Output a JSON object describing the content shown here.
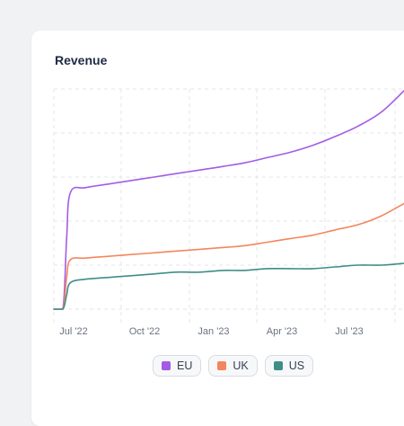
{
  "card": {
    "title": "Revenue"
  },
  "colors": {
    "EU": "#a35ce3",
    "UK": "#f4865f",
    "US": "#3f8d88",
    "grid": "#e3e5e9"
  },
  "chart_data": {
    "type": "line",
    "title": "Revenue",
    "xlabel": "",
    "ylabel": "",
    "x_ticks": [
      "Jul '22",
      "Oct '22",
      "Jan '23",
      "Apr '23",
      "Jul '23"
    ],
    "x": [
      "2022-06-20",
      "2022-07-02",
      "2022-07-07",
      "2022-07-12",
      "2022-08-01",
      "2022-09-01",
      "2022-10-01",
      "2022-11-01",
      "2022-12-01",
      "2023-01-01",
      "2023-02-01",
      "2023-03-01",
      "2023-04-01",
      "2023-05-01",
      "2023-06-01",
      "2023-07-01",
      "2023-08-01",
      "2023-09-01",
      "2023-10-01"
    ],
    "series": [
      {
        "name": "EU",
        "values": [
          0,
          0,
          40,
          66,
          69,
          71,
          73,
          75,
          77,
          79,
          81,
          83,
          86,
          89,
          93,
          98,
          104,
          112,
          124
        ]
      },
      {
        "name": "UK",
        "values": [
          0,
          0,
          18,
          28,
          29,
          30,
          31,
          32,
          33,
          34,
          35,
          36,
          38,
          40,
          42,
          45,
          48,
          53,
          60
        ]
      },
      {
        "name": "US",
        "values": [
          0,
          0,
          8,
          15,
          17,
          18,
          19,
          20,
          21,
          21,
          22,
          22,
          23,
          23,
          23,
          24,
          25,
          25,
          26
        ]
      }
    ],
    "ylim": [
      0,
      125
    ],
    "grid": true,
    "legend": "bottom"
  },
  "legend": [
    {
      "label": "EU",
      "color": "#a35ce3"
    },
    {
      "label": "UK",
      "color": "#f4865f"
    },
    {
      "label": "US",
      "color": "#3f8d88"
    }
  ]
}
